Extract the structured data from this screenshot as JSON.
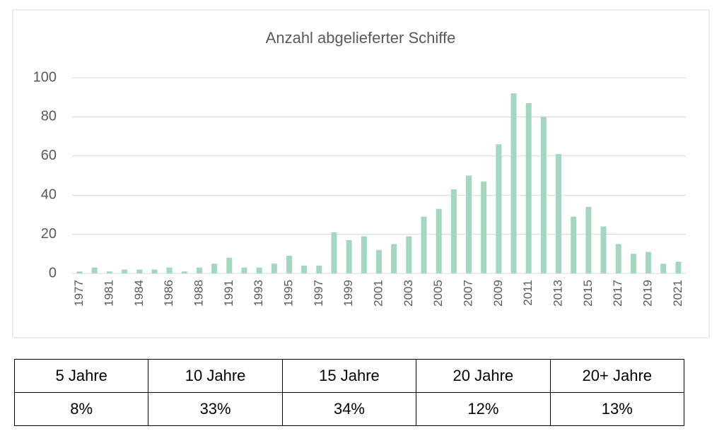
{
  "chart_data": {
    "type": "bar",
    "title": "Anzahl abgelieferter Schiffe",
    "categories": [
      "1977",
      null,
      "1981",
      null,
      "1984",
      null,
      "1986",
      null,
      "1988",
      null,
      "1991",
      null,
      "1993",
      null,
      "1995",
      null,
      "1997",
      null,
      "1999",
      null,
      "2001",
      null,
      "2003",
      null,
      "2005",
      null,
      "2007",
      null,
      "2009",
      null,
      "2011",
      null,
      "2013",
      null,
      "2015",
      null,
      "2017",
      null,
      "2019",
      null,
      "2021"
    ],
    "values": [
      1,
      3,
      1,
      2,
      2,
      2,
      3,
      1,
      3,
      5,
      8,
      3,
      3,
      5,
      9,
      4,
      4,
      21,
      17,
      19,
      12,
      15,
      19,
      29,
      33,
      43,
      50,
      47,
      66,
      92,
      87,
      80,
      61,
      29,
      34,
      24,
      15,
      10,
      11,
      5,
      6
    ],
    "color": "#a3d7bf",
    "ylim": [
      0,
      100
    ],
    "yticks": [
      0,
      20,
      40,
      60,
      80,
      100
    ],
    "grid": true
  },
  "table": {
    "header": [
      "5 Jahre",
      "10 Jahre",
      "15 Jahre",
      "20 Jahre",
      "20+ Jahre"
    ],
    "rows": [
      [
        "8%",
        "33%",
        "34%",
        "12%",
        "13%"
      ]
    ]
  }
}
